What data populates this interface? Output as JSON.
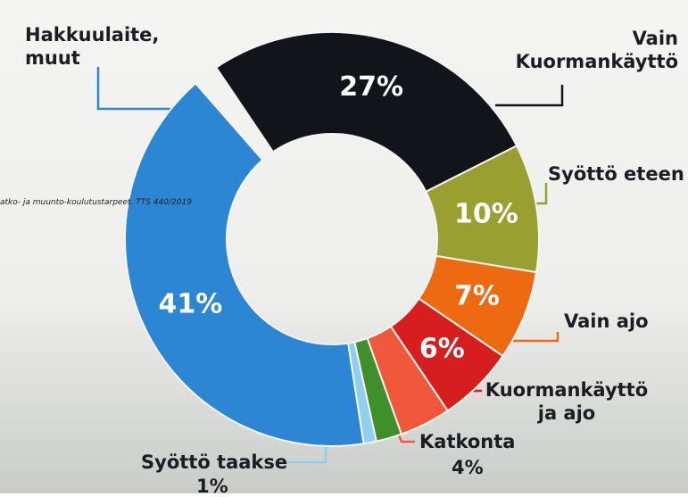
{
  "chart_data": {
    "type": "donut",
    "categories": [
      "Vain Kuormankäyttö",
      "Syöttö eteen",
      "Vain ajo",
      "Kuormankäyttö ja ajo",
      "Katkonta",
      null,
      "Syöttö taakse",
      "Hakkuulaite, muut"
    ],
    "values": [
      27,
      10,
      7,
      6,
      4,
      2,
      1,
      41
    ],
    "value_labels": [
      "27%",
      "10%",
      "7%",
      "6%",
      "4%",
      null,
      "1%",
      "41%"
    ],
    "colors": [
      "#111418",
      "#9aa030",
      "#ee6a10",
      "#d61e1e",
      "#f0583c",
      "#3f8f2a",
      "#8fd0ef",
      "#2c86d4"
    ],
    "annotation": "atko- ja muunto-koulutustarpeet. TTS 440/2019"
  }
}
